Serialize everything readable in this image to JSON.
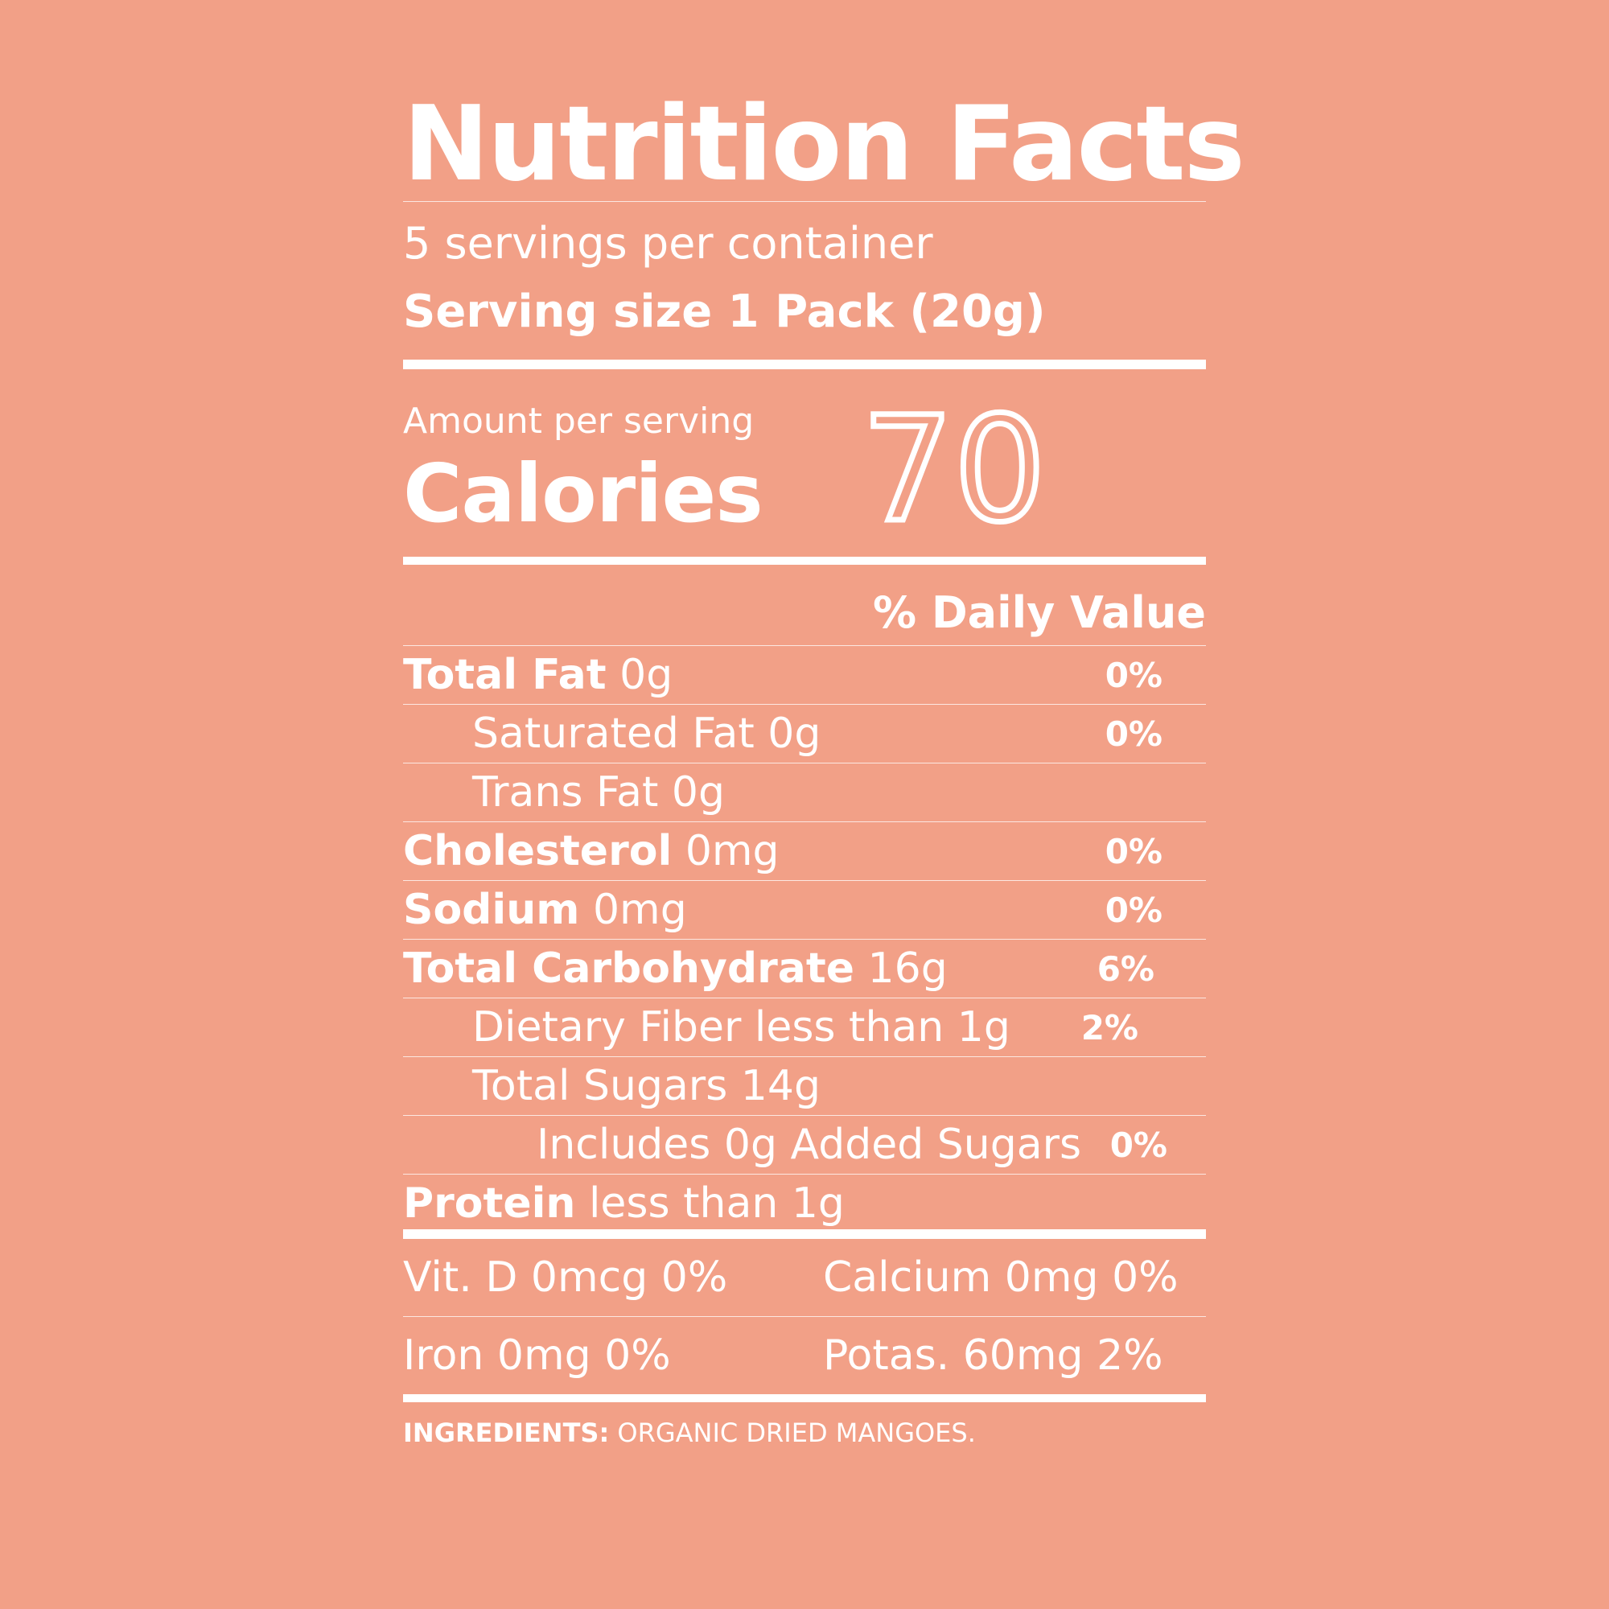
{
  "colors": {
    "background": "#f2a087",
    "text": "#ffffff"
  },
  "header": {
    "title": "Nutrition Facts",
    "servings_per_container": "5 servings per container",
    "serving_size": "Serving size 1 Pack (20g)"
  },
  "calories": {
    "amount_label": "Amount per serving",
    "label": "Calories",
    "value": "70"
  },
  "daily_value_header": "% Daily Value",
  "nutrients": [
    {
      "name": "Total Fat",
      "amount": "0g",
      "dv": "0%"
    },
    {
      "name": "Saturated Fat 0g",
      "dv": "0%"
    },
    {
      "name": "Trans Fat 0g"
    },
    {
      "name": "Cholesterol",
      "amount": "0mg",
      "dv": "0%"
    },
    {
      "name": "Sodium",
      "amount": "0mg",
      "dv": "0%"
    },
    {
      "name": "Total Carbohydrate",
      "amount": "16g",
      "dv": "6%"
    },
    {
      "name": "Dietary Fiber less than 1g",
      "dv": "2%"
    },
    {
      "name": "Total Sugars 14g"
    },
    {
      "name": "Includes 0g Added Sugars",
      "dv": "0%"
    },
    {
      "name": "Protein",
      "amount": "less than 1g"
    }
  ],
  "vitamins": {
    "vit_d": "Vit. D 0mcg 0%",
    "calcium": "Calcium 0mg 0%",
    "iron": "Iron 0mg 0%",
    "potassium": "Potas. 60mg 2%"
  },
  "ingredients": {
    "label": "INGREDIENTS:",
    "text": "ORGANIC DRIED MANGOES."
  }
}
